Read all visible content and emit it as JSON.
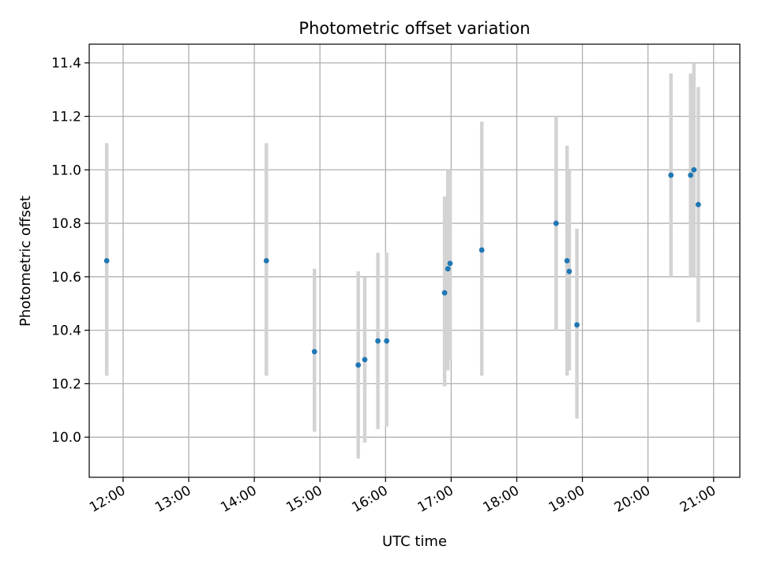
{
  "chart_data": {
    "type": "scatter",
    "title": "Photometric offset variation",
    "xlabel": "UTC time",
    "ylabel": "Photometric offset",
    "grid": true,
    "x_ticks": [
      "12:00",
      "13:00",
      "14:00",
      "15:00",
      "16:00",
      "17:00",
      "18:00",
      "19:00",
      "20:00",
      "21:00"
    ],
    "y_ticks": [
      "10.0",
      "10.2",
      "10.4",
      "10.6",
      "10.8",
      "11.0",
      "11.2",
      "11.4"
    ],
    "xlim": [
      "11:29",
      "21:24"
    ],
    "ylim": [
      9.85,
      11.47
    ],
    "marker_color": "#1f77b4",
    "errorbar_color": "#d3d3d3",
    "points": [
      {
        "t": "11:45",
        "y": 10.66,
        "lo": 10.23,
        "hi": 11.1
      },
      {
        "t": "14:11",
        "y": 10.66,
        "lo": 10.23,
        "hi": 11.1
      },
      {
        "t": "14:55",
        "y": 10.32,
        "lo": 10.02,
        "hi": 10.63
      },
      {
        "t": "15:35",
        "y": 10.27,
        "lo": 9.92,
        "hi": 10.62
      },
      {
        "t": "15:41",
        "y": 10.29,
        "lo": 9.98,
        "hi": 10.6
      },
      {
        "t": "15:53",
        "y": 10.36,
        "lo": 10.03,
        "hi": 10.69
      },
      {
        "t": "16:01",
        "y": 10.36,
        "lo": 10.04,
        "hi": 10.69
      },
      {
        "t": "16:54",
        "y": 10.54,
        "lo": 10.19,
        "hi": 10.9
      },
      {
        "t": "16:57",
        "y": 10.63,
        "lo": 10.25,
        "hi": 11.0
      },
      {
        "t": "16:59",
        "y": 10.65,
        "lo": 10.29,
        "hi": 11.0
      },
      {
        "t": "17:28",
        "y": 10.7,
        "lo": 10.23,
        "hi": 11.18
      },
      {
        "t": "18:36",
        "y": 10.8,
        "lo": 10.4,
        "hi": 11.2
      },
      {
        "t": "18:46",
        "y": 10.66,
        "lo": 10.23,
        "hi": 11.09
      },
      {
        "t": "18:48",
        "y": 10.62,
        "lo": 10.25,
        "hi": 11.0
      },
      {
        "t": "18:55",
        "y": 10.42,
        "lo": 10.07,
        "hi": 10.78
      },
      {
        "t": "20:21",
        "y": 10.98,
        "lo": 10.6,
        "hi": 11.36
      },
      {
        "t": "20:39",
        "y": 10.98,
        "lo": 10.6,
        "hi": 11.36
      },
      {
        "t": "20:42",
        "y": 11.0,
        "lo": 10.6,
        "hi": 11.4
      },
      {
        "t": "20:46",
        "y": 10.87,
        "lo": 10.43,
        "hi": 11.31
      }
    ]
  }
}
